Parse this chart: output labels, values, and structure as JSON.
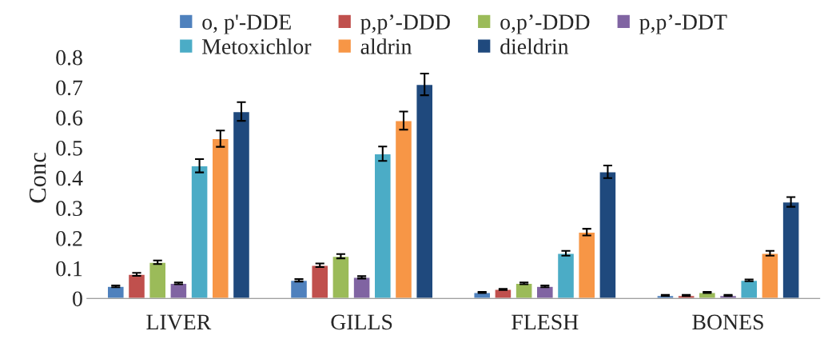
{
  "chart_data": {
    "type": "bar",
    "ylabel": "Conc",
    "categories": [
      "LIVER",
      "GILLS",
      "FLESH",
      "BONES"
    ],
    "series": [
      {
        "name": "o, p'-DDE",
        "color": "#4f81bd",
        "values": [
          0.04,
          0.06,
          0.02,
          0.01
        ],
        "errors": [
          0.003,
          0.004,
          0.002,
          0.002
        ]
      },
      {
        "name": "p,p’-DDD",
        "color": "#c0504d",
        "values": [
          0.08,
          0.11,
          0.03,
          0.01
        ],
        "errors": [
          0.005,
          0.006,
          0.002,
          0.002
        ]
      },
      {
        "name": "o,p’-DDD",
        "color": "#9bbb59",
        "values": [
          0.12,
          0.14,
          0.05,
          0.02
        ],
        "errors": [
          0.006,
          0.007,
          0.003,
          0.002
        ]
      },
      {
        "name": "p,p’-DDT",
        "color": "#8064a2",
        "values": [
          0.05,
          0.07,
          0.04,
          0.01
        ],
        "errors": [
          0.003,
          0.004,
          0.003,
          0.002
        ]
      },
      {
        "name": "Metoxichlor",
        "color": "#4bacc6",
        "values": [
          0.44,
          0.48,
          0.15,
          0.06
        ],
        "errors": [
          0.022,
          0.024,
          0.008,
          0.003
        ]
      },
      {
        "name": "aldrin",
        "color": "#f79646",
        "values": [
          0.53,
          0.59,
          0.22,
          0.15
        ],
        "errors": [
          0.027,
          0.03,
          0.011,
          0.008
        ]
      },
      {
        "name": "dieldrin",
        "color": "#1f497d",
        "values": [
          0.62,
          0.71,
          0.42,
          0.32
        ],
        "errors": [
          0.031,
          0.036,
          0.021,
          0.016
        ]
      }
    ],
    "ylim": [
      0,
      0.8
    ],
    "yticks": [
      0,
      0.1,
      0.2,
      0.3,
      0.4,
      0.5,
      0.6,
      0.7,
      0.8
    ],
    "legend": "top",
    "grid": false
  }
}
